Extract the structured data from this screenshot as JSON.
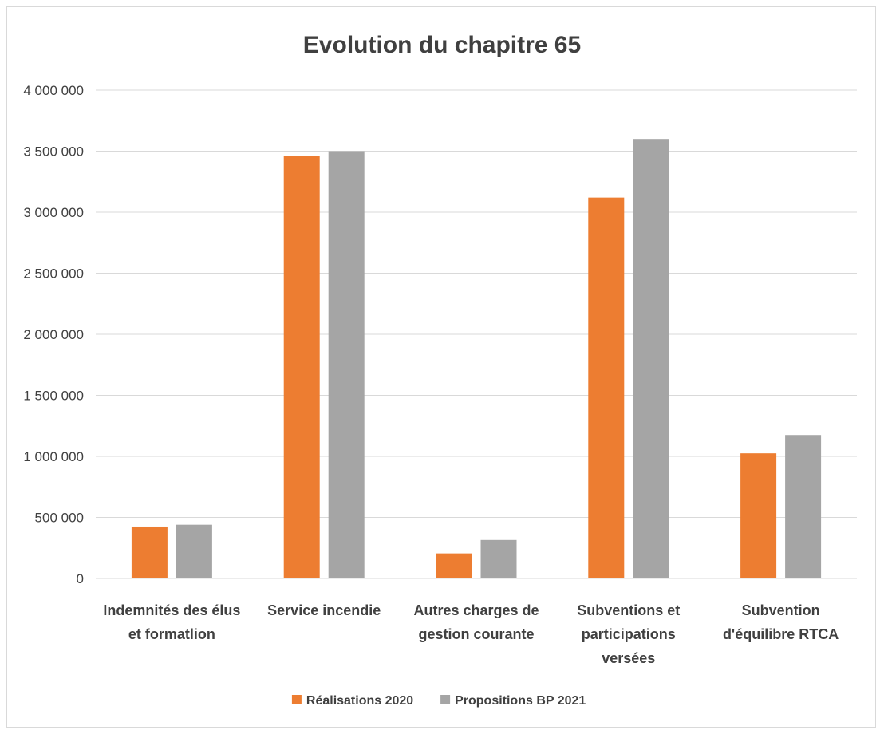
{
  "chart_data": {
    "type": "bar",
    "title": "Evolution du chapitre 65",
    "xlabel": "",
    "ylabel": "",
    "ylim": [
      0,
      4000000
    ],
    "y_ticks": [
      0,
      500000,
      1000000,
      1500000,
      2000000,
      2500000,
      3000000,
      3500000,
      4000000
    ],
    "y_tick_labels": [
      "0",
      "500 000",
      "1 000 000",
      "1 500 000",
      "2 000 000",
      "2 500 000",
      "3 000 000",
      "3 500 000",
      "4 000 000"
    ],
    "grid": true,
    "legend_position": "bottom",
    "categories": [
      "Indemnités des élus et formatlion",
      "Service incendie",
      "Autres charges de gestion courante",
      "Subventions et participations versées",
      "Subvention d'équilibre RTCA"
    ],
    "category_label_lines": [
      [
        "Indemnités des élus",
        "et formatlion"
      ],
      [
        "Service incendie"
      ],
      [
        "Autres charges de",
        "gestion courante"
      ],
      [
        "Subventions et",
        "participations",
        "versées"
      ],
      [
        "Subvention",
        "d'équilibre RTCA"
      ]
    ],
    "series": [
      {
        "name": "Réalisations 2020",
        "color": "#ed7d31",
        "values": [
          425000,
          3460000,
          205000,
          3120000,
          1025000
        ]
      },
      {
        "name": "Propositions BP 2021",
        "color": "#a5a5a5",
        "values": [
          440000,
          3500000,
          315000,
          3600000,
          1175000
        ]
      }
    ]
  }
}
